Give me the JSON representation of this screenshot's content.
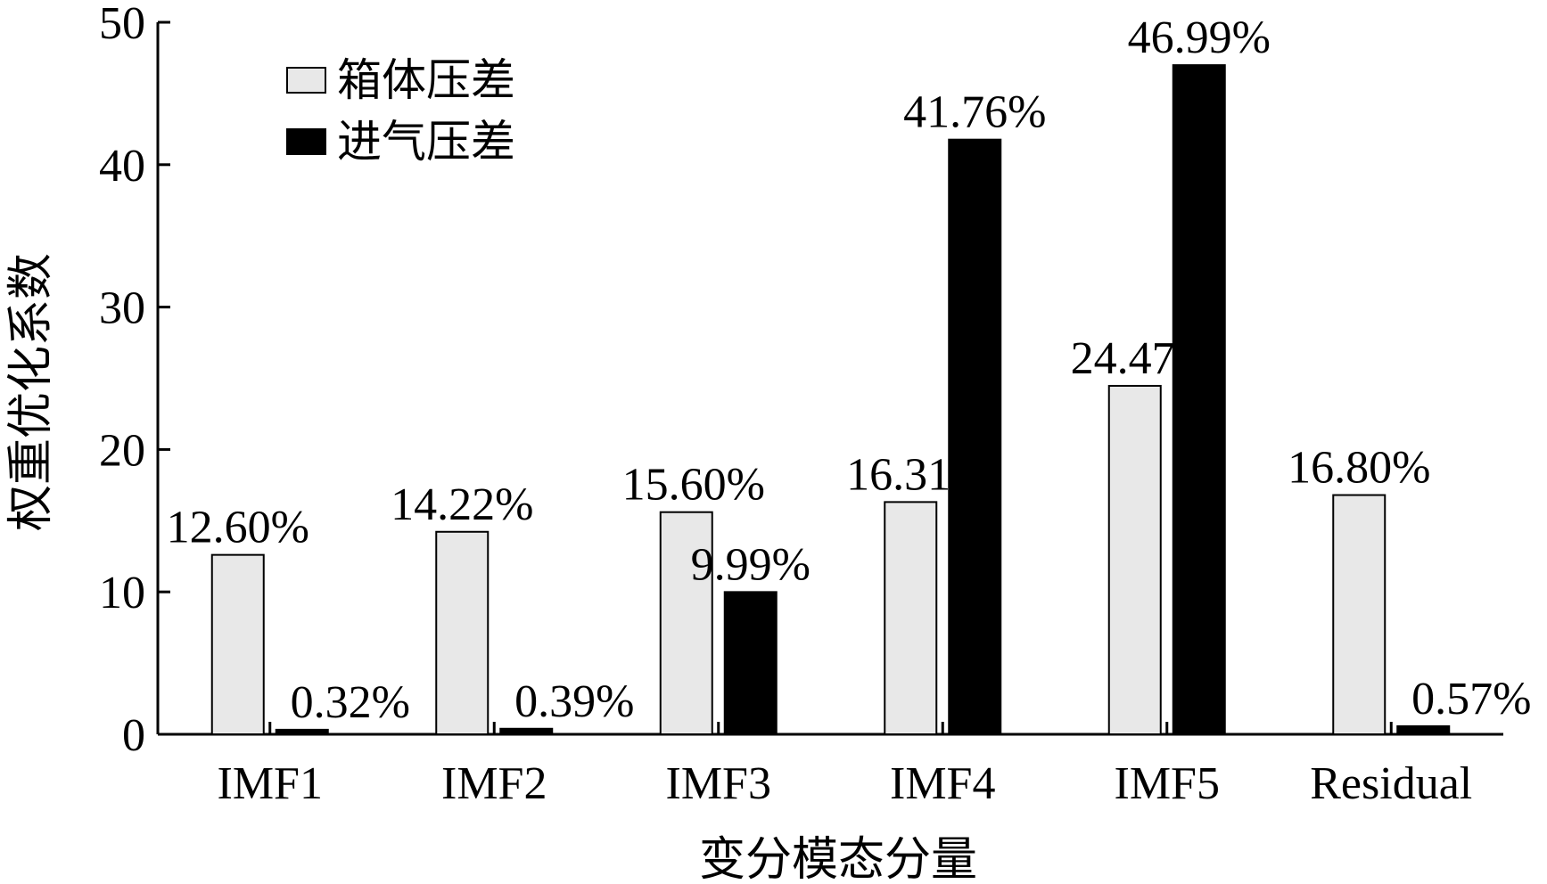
{
  "chart_data": {
    "type": "bar",
    "title": "",
    "xlabel": "变分模态分量",
    "ylabel": "权重优化系数",
    "ylim": [
      0,
      50
    ],
    "yticks": [
      0,
      10,
      20,
      30,
      40,
      50
    ],
    "categories": [
      "IMF1",
      "IMF2",
      "IMF3",
      "IMF4",
      "IMF5",
      "Residual"
    ],
    "series": [
      {
        "name": "箱体压差",
        "color": "#e8e8e8",
        "values": [
          12.6,
          14.22,
          15.6,
          16.31,
          24.47,
          16.8
        ],
        "labels": [
          "12.60%",
          "14.22%",
          "15.60%",
          "16.31%",
          "24.47%",
          "16.80%"
        ]
      },
      {
        "name": "进气压差",
        "color": "#000000",
        "values": [
          0.32,
          0.39,
          9.99,
          41.76,
          46.99,
          0.57
        ],
        "labels": [
          "0.32%",
          "0.39%",
          "9.99%",
          "41.76%",
          "46.99%",
          "0.57%"
        ]
      }
    ],
    "legend": "top-left",
    "grid": false
  }
}
